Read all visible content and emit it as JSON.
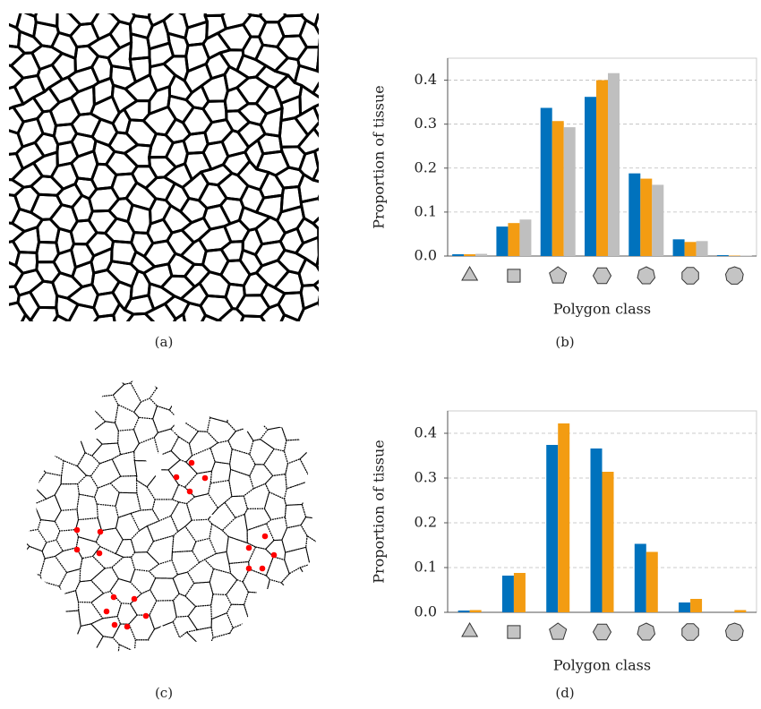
{
  "figure": {
    "captions": [
      "(a)",
      "(b)",
      "(c)",
      "(d)"
    ]
  },
  "chart_data": [
    {
      "type": "bar",
      "ylabel": "Proportion of tissue",
      "xlabel": "Polygon class",
      "categories": [
        null,
        null,
        null,
        null,
        null,
        null,
        null
      ],
      "series": [
        {
          "color": "#0072bd",
          "values": [
            0.004,
            0.067,
            0.337,
            0.362,
            0.188,
            0.038,
            0.002
          ]
        },
        {
          "color": "#f39c12",
          "values": [
            0.004,
            0.075,
            0.307,
            0.4,
            0.176,
            0.032,
            0.001
          ]
        },
        {
          "color": "#bfbfbf",
          "values": [
            0.005,
            0.083,
            0.293,
            0.416,
            0.162,
            0.034,
            0.001
          ]
        }
      ],
      "ylim": [
        0,
        0.45
      ],
      "yticks": [
        {
          "value": 0,
          "label": "0.0"
        },
        0.1,
        0.2,
        0.3,
        0.4
      ],
      "grid": true
    },
    {
      "type": "bar",
      "ylabel": "Proportion of tissue",
      "xlabel": "Polygon class",
      "categories": [
        null,
        null,
        null,
        null,
        null,
        null,
        null
      ],
      "series": [
        {
          "color": "#0072bd",
          "values": [
            0.004,
            0.082,
            0.374,
            0.366,
            0.153,
            0.022,
            0
          ]
        },
        {
          "color": "#f39c12",
          "values": [
            0.005,
            0.088,
            0.422,
            0.314,
            0.135,
            0.03,
            0.005
          ]
        }
      ],
      "ylim": [
        0,
        0.45
      ],
      "yticks": [
        {
          "value": 0,
          "label": "0.0"
        },
        0.1,
        0.2,
        0.3,
        0.4
      ],
      "grid": true
    }
  ]
}
